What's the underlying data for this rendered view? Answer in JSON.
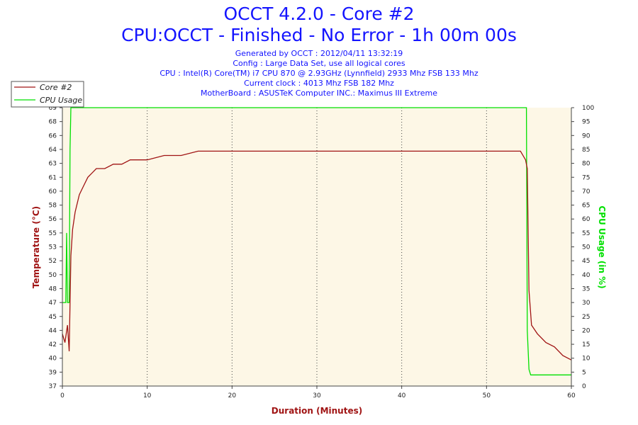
{
  "header": {
    "title": "OCCT 4.2.0 - Core #2",
    "subtitle": "CPU:OCCT - Finished - No Error - 1h 00m 00s",
    "info": [
      "Generated by OCCT : 2012/04/11 13:32:19",
      "Config : Large Data Set, use all logical cores",
      "CPU : Intel(R) Core(TM) i7 CPU 870 @ 2.93GHz (Lynnfield) 2933 Mhz FSB 133 Mhz",
      "Current clock : 4013 Mhz FSB 182 Mhz",
      "MotherBoard : ASUSTeK Computer INC.: Maximus III Extreme"
    ]
  },
  "colors": {
    "temperature": "#a01414",
    "cpu_usage": "#00e000",
    "plot_background": "#fdf7e6",
    "grid": "#444444",
    "header_text": "#1414ff"
  },
  "chart_data": {
    "type": "line",
    "xlabel": "Duration (Minutes)",
    "ylabel": "Temperature (°C)",
    "y2label": "CPU Usage (in %)",
    "xlim": [
      0,
      60
    ],
    "ylim": [
      37,
      69
    ],
    "y2lim": [
      0,
      100
    ],
    "x_ticks": [
      0,
      10,
      20,
      30,
      40,
      50,
      60
    ],
    "y_tick_labels": [
      "37",
      "39",
      "40",
      "42",
      "44",
      "45",
      "47",
      "48",
      "50",
      "52",
      "53",
      "55",
      "56",
      "58",
      "60",
      "61",
      "63",
      "64",
      "66",
      "68",
      "69"
    ],
    "y2_ticks": [
      0,
      5,
      10,
      15,
      20,
      25,
      30,
      35,
      40,
      45,
      50,
      55,
      60,
      65,
      70,
      75,
      80,
      85,
      90,
      95,
      100
    ],
    "grid": true,
    "legend_position": "top-left",
    "series": [
      {
        "name": "Core #2",
        "axis": "left",
        "x": [
          0,
          0.3,
          0.6,
          0.8,
          1.0,
          1.2,
          1.5,
          2,
          2.5,
          3,
          4,
          5,
          6,
          7,
          8,
          9,
          10,
          12,
          14,
          16,
          18,
          20,
          22,
          24,
          26,
          28,
          30,
          32,
          34,
          36,
          38,
          40,
          42,
          44,
          46,
          48,
          50,
          52,
          53,
          54,
          54.6,
          54.8,
          55,
          55.3,
          56,
          57,
          58,
          59,
          60
        ],
        "y": [
          43,
          42,
          44,
          41,
          52,
          55,
          57,
          59,
          60,
          61,
          62,
          62,
          62.5,
          62.5,
          63,
          63,
          63,
          63.5,
          63.5,
          64,
          64,
          64,
          64,
          64,
          64,
          64,
          64,
          64,
          64,
          64,
          64,
          64,
          64,
          64,
          64,
          64,
          64,
          64,
          64,
          64,
          63,
          62,
          48,
          44,
          43,
          42,
          41.5,
          40.5,
          40
        ]
      },
      {
        "name": "CPU Usage",
        "axis": "right",
        "x": [
          0,
          0.4,
          0.5,
          0.6,
          0.8,
          0.9,
          1.0,
          1.1,
          1.2,
          2,
          10,
          20,
          30,
          40,
          50,
          54.5,
          54.7,
          54.8,
          55.0,
          55.2,
          56,
          57,
          58,
          59,
          60
        ],
        "y": [
          30,
          30,
          55,
          30,
          30,
          85,
          100,
          100,
          100,
          100,
          100,
          100,
          100,
          100,
          100,
          100,
          100,
          20,
          6,
          4,
          4,
          4,
          4,
          4,
          4
        ]
      }
    ]
  }
}
